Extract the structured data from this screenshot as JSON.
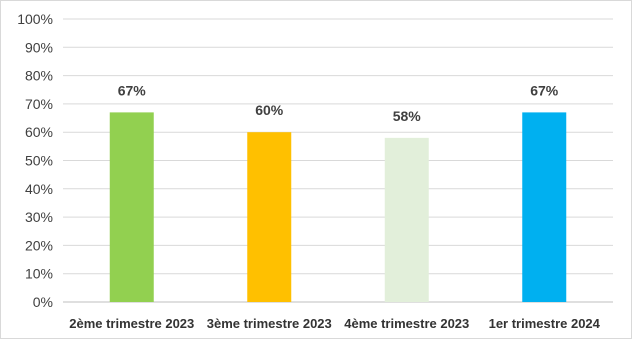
{
  "chart_data": {
    "type": "bar",
    "categories": [
      "2ème trimestre 2023",
      "3ème trimestre 2023",
      "4ème trimestre 2023",
      "1er trimestre 2024"
    ],
    "values": [
      67,
      60,
      58,
      67
    ],
    "data_labels": [
      "67%",
      "60%",
      "58%",
      "67%"
    ],
    "bar_colors": [
      "#92d050",
      "#ffc000",
      "#e2efda",
      "#00b0f0"
    ],
    "ylim": [
      0,
      100
    ],
    "yticks": [
      0,
      10,
      20,
      30,
      40,
      50,
      60,
      70,
      80,
      90,
      100
    ],
    "ytick_labels": [
      "0%",
      "10%",
      "20%",
      "30%",
      "40%",
      "50%",
      "60%",
      "70%",
      "80%",
      "90%",
      "100%"
    ],
    "grid": true,
    "legend": "none",
    "title": "",
    "xlabel": "",
    "ylabel": ""
  }
}
